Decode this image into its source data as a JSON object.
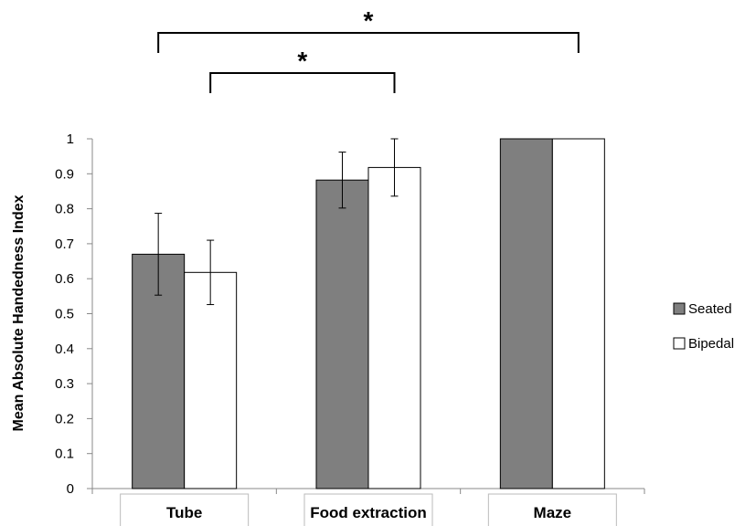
{
  "chart_data": {
    "type": "bar",
    "title": "",
    "xlabel": "",
    "ylabel": "Mean Absolute Handedness Index",
    "ylim": [
      0,
      1
    ],
    "yticks": [
      "0",
      "0.1",
      "0.2",
      "0.3",
      "0.4",
      "0.5",
      "0.6",
      "0.7",
      "0.8",
      "0.9",
      "1"
    ],
    "categories": [
      "Tube",
      "Food extraction",
      "Maze"
    ],
    "series": [
      {
        "name": "Seated",
        "color": "#7f7f7f",
        "values": [
          0.67,
          0.882,
          1.0
        ],
        "error": [
          0.117,
          0.08,
          null
        ]
      },
      {
        "name": "Bipedal",
        "color": "#ffffff",
        "values": [
          0.618,
          0.918,
          1.0
        ],
        "error": [
          0.092,
          0.082,
          null
        ]
      }
    ],
    "legend_position": "right",
    "grid": false,
    "annotations": [
      {
        "label": "*",
        "from": "Tube (Seated)",
        "to": "Maze (Bipedal)"
      },
      {
        "label": "*",
        "from": "Tube (Bipedal)",
        "to": "Food extraction (Bipedal)"
      }
    ]
  }
}
